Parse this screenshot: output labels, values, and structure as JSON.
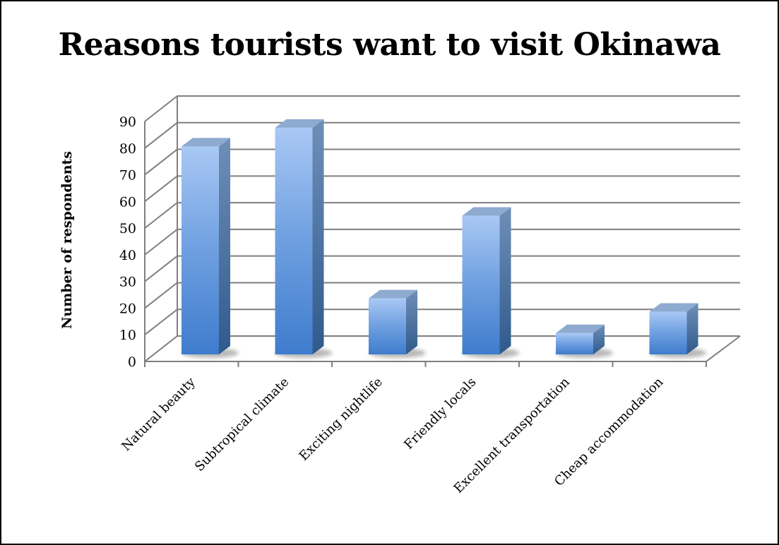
{
  "chart_data": {
    "type": "bar",
    "title": "Reasons tourists want to visit Okinawa",
    "xlabel": "",
    "ylabel": "Number of respondents",
    "categories": [
      "Natural beauty",
      "Subtropical climate",
      "Exciting nightlife",
      "Friendly locals",
      "Excellent transportation",
      "Cheap accommodation"
    ],
    "values": [
      78,
      85,
      21,
      52,
      8,
      16
    ],
    "ylim": [
      0,
      90
    ],
    "yticks": [
      0,
      10,
      20,
      30,
      40,
      50,
      60,
      70,
      80,
      90
    ],
    "grid": true,
    "legend": "none",
    "style": "3d-column",
    "colors": {
      "bar_light": "#a9c8f5",
      "bar_mid": "#6e9fe0",
      "bar_dark": "#3f76c2",
      "bar_side": "#35608f",
      "bar_top": "#8eaad0",
      "gridline": "#7f7f7f"
    }
  }
}
